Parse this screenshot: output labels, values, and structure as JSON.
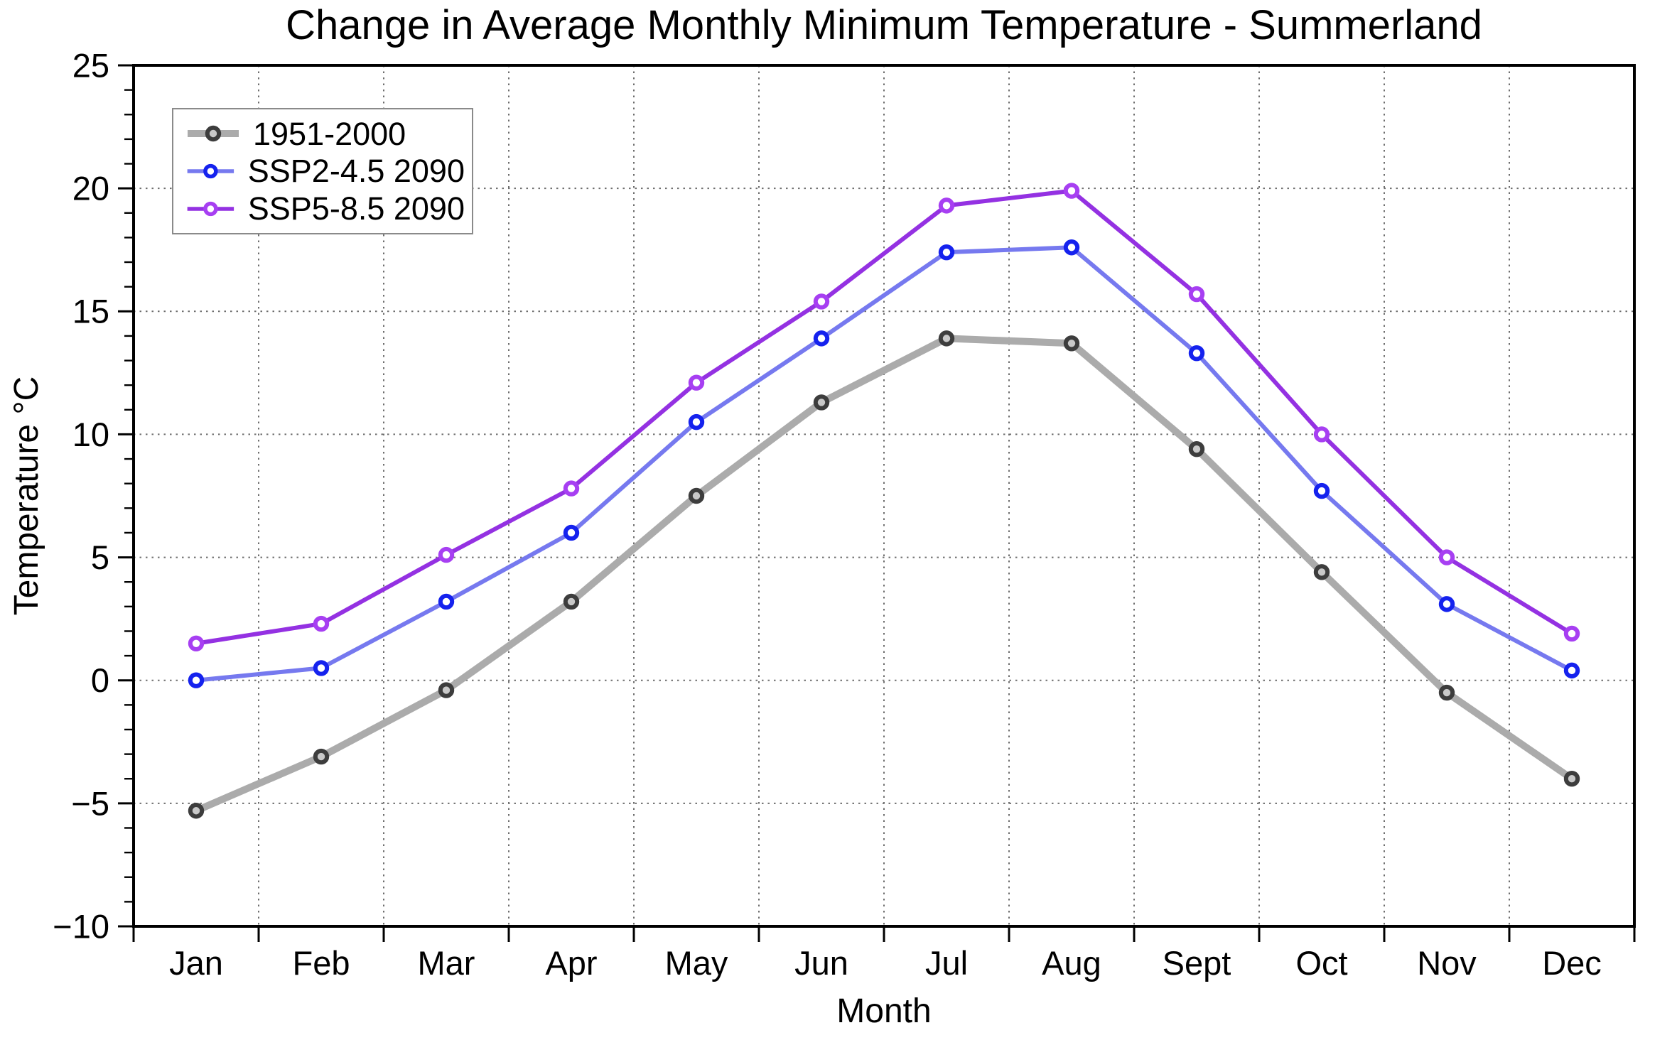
{
  "chart_data": {
    "type": "line",
    "title": "Change in Average Monthly Minimum Temperature - Summerland",
    "xlabel": "Month",
    "ylabel": "Temperature °C",
    "ylim": [
      -10,
      25
    ],
    "y_major_ticks": [
      25,
      20,
      15,
      10,
      5,
      0,
      -5,
      -10
    ],
    "y_minor_tick_step": 1,
    "grid": {
      "style": "dotted",
      "color": "#6e6e6e",
      "vertical": "month-boundaries",
      "horizontal": "major-ticks"
    },
    "legend_position": "upper-left",
    "axis_color": "#000000",
    "background_color": "#ffffff",
    "categories": [
      "Jan",
      "Feb",
      "Mar",
      "Apr",
      "May",
      "Jun",
      "Jul",
      "Aug",
      "Sept",
      "Oct",
      "Nov",
      "Dec"
    ],
    "series": [
      {
        "name": "1951-2000",
        "line_color": "#ababab",
        "marker_edge_color": "#3d3d3d",
        "marker_fill_color": "#c9c9c9",
        "line_width": 10,
        "values": [
          -5.3,
          -3.1,
          -0.4,
          3.2,
          7.5,
          11.3,
          13.9,
          13.7,
          9.4,
          4.4,
          -0.5,
          -4.0
        ]
      },
      {
        "name": "SSP2-4.5 2090",
        "line_color": "#7679ef",
        "marker_edge_color": "#1522ee",
        "marker_fill_color": "#ffffff",
        "line_width": 6,
        "values": [
          0.0,
          0.5,
          3.2,
          6.0,
          10.5,
          13.9,
          17.4,
          17.6,
          13.3,
          7.7,
          3.1,
          0.4
        ]
      },
      {
        "name": "SSP5-8.5 2090",
        "line_color": "#9431e2",
        "marker_edge_color": "#a73ff2",
        "marker_fill_color": "#ffffff",
        "line_width": 6,
        "values": [
          1.5,
          2.3,
          5.1,
          7.8,
          12.1,
          15.4,
          19.3,
          19.9,
          15.7,
          10.0,
          5.0,
          1.9
        ]
      }
    ]
  }
}
